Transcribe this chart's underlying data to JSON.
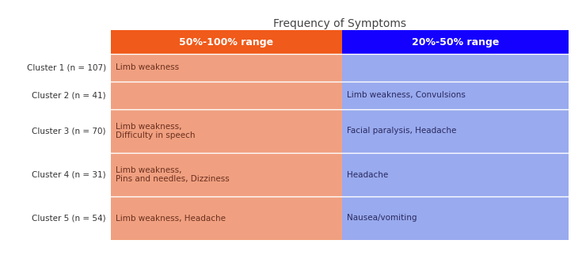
{
  "title": "Frequency of Symptoms",
  "col_headers": [
    "50%-100% range",
    "20%-50% range"
  ],
  "col_header_colors": [
    "#F05A1A",
    "#1400FF"
  ],
  "col_header_text_color": "#FFFFFF",
  "row_labels": [
    "Cluster 1 (n = 107)",
    "Cluster 2 (n = 41)",
    "Cluster 3 (n = 70)",
    "Cluster 4 (n = 31)",
    "Cluster 5 (n = 54)"
  ],
  "col1_data": [
    "Limb weakness",
    "",
    "Limb weakness,\nDifficulty in speech",
    "Limb weakness,\nPins and needles, Dizziness",
    "Limb weakness, Headache"
  ],
  "col2_data": [
    "",
    "Limb weakness, Convulsions",
    "Facial paralysis, Headache",
    "Headache",
    "Nausea/vomiting"
  ],
  "col1_bg": "#F0A080",
  "col2_bg": "#99AAEE",
  "col1_text_color": "#6B3020",
  "col2_text_color": "#2A2A60",
  "row_label_color": "#333333",
  "bg_color": "#FFFFFF",
  "title_fontsize": 10,
  "cell_fontsize": 7.5,
  "header_fontsize": 9,
  "row_label_fontsize": 7.5
}
